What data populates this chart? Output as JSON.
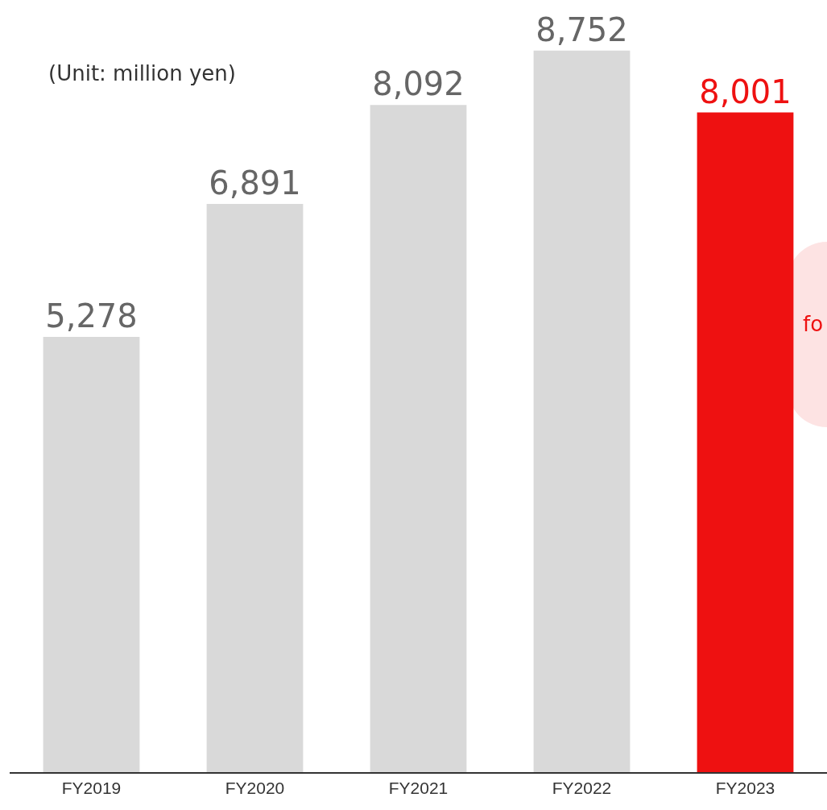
{
  "chart_data": {
    "type": "bar",
    "categories": [
      "FY2019",
      "FY2020",
      "FY2021",
      "FY2022",
      "FY2023"
    ],
    "values": [
      5278,
      6891,
      8092,
      8752,
      8001
    ],
    "colors": [
      "#d9d9d9",
      "#d9d9d9",
      "#d9d9d9",
      "#d9d9d9",
      "#ee1111"
    ],
    "value_labels": [
      "5,278",
      "6,891",
      "8,092",
      "8,752",
      "8,001"
    ],
    "tick_labels": "x",
    "grid": false,
    "legend": false,
    "annotations": [
      "(Unit: million yen)",
      "fo"
    ]
  }
}
